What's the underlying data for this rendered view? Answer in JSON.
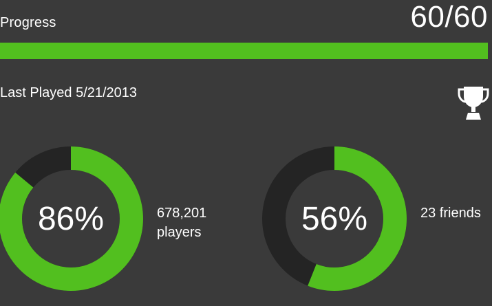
{
  "progress": {
    "label": "Progress",
    "value_text": "60/60",
    "fraction": 1.0
  },
  "last_played": "Last Played 5/21/2013",
  "trophy_icon": "trophy-icon",
  "stats": [
    {
      "percent_text": "86%",
      "fraction": 0.86,
      "caption_line1": "678,201",
      "caption_line2": "players"
    },
    {
      "percent_text": "56%",
      "fraction": 0.56,
      "caption_line1": "23 friends",
      "caption_line2": ""
    }
  ],
  "colors": {
    "background": "#3a3a3a",
    "accent": "#52bf1f",
    "track": "#242424",
    "text": "#ffffff"
  }
}
